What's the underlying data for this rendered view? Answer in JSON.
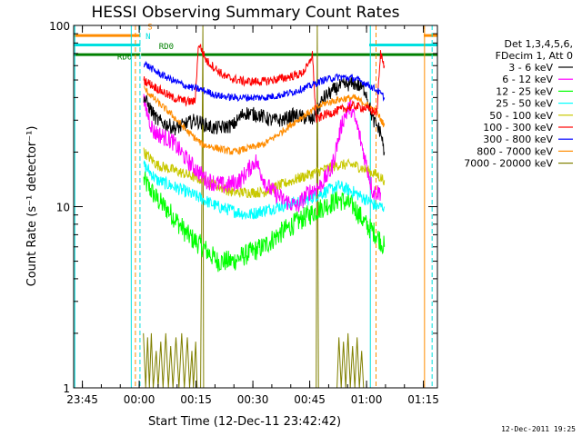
{
  "chart_data": {
    "type": "line",
    "title": "HESSI Observing Summary Count Rates",
    "xlabel": "Start Time (12-Dec-11 23:42:42)",
    "ylabel": "Count Rate (s⁻¹ detector⁻¹)",
    "ylog": true,
    "x_unit": "minutes since 23:42:42",
    "xlim": [
      0,
      96
    ],
    "ylim": [
      1,
      100
    ],
    "xticks": [
      {
        "label": "23:45",
        "x": 2.3
      },
      {
        "label": "00:00",
        "x": 17.3
      },
      {
        "label": "00:15",
        "x": 32.3
      },
      {
        "label": "00:30",
        "x": 47.3
      },
      {
        "label": "00:45",
        "x": 62.3
      },
      {
        "label": "01:00",
        "x": 77.3
      },
      {
        "label": "01:15",
        "x": 92.3
      }
    ],
    "yticks": [
      {
        "label": "100",
        "y": 100
      },
      {
        "label": "10",
        "y": 10
      },
      {
        "label": "1",
        "y": 1
      }
    ],
    "legend_header": [
      "Det 1,3,4,5,6,",
      "FDecim 1, Att 0"
    ],
    "legend_placement": "right",
    "footer_date": "12-Dec-2011 19:25",
    "flags": [
      {
        "label": "S",
        "color": "#ff8c00",
        "y": 88,
        "x": [
          0,
          17.6
        ],
        "x2": [
          92.4,
          96
        ]
      },
      {
        "label": "N",
        "color": "#00e0e0",
        "y": 78,
        "x": [
          0,
          17.6
        ],
        "x2": [
          78.0,
          96
        ]
      },
      {
        "label": "RD0",
        "color": "#008000",
        "y": 69,
        "x": [
          17.8,
          96
        ],
        "x2": []
      },
      {
        "label": "RD6",
        "color": "#008000",
        "y": 69,
        "x": [
          0,
          17.6
        ],
        "x2": []
      }
    ],
    "flag_labels": [
      {
        "text": "S",
        "color": "#ff8c00",
        "x": 19.5,
        "y": 95
      },
      {
        "text": "N",
        "color": "#00e0e0",
        "x": 19.0,
        "y": 84
      },
      {
        "text": "RD0",
        "color": "#008000",
        "x": 22.5,
        "y": 74
      },
      {
        "text": "RD6",
        "color": "#008000",
        "x": 11.5,
        "y": 65
      }
    ],
    "vlines": [
      {
        "x": 0.3,
        "color": "#00e0e0",
        "style": "solid"
      },
      {
        "x": 15.2,
        "color": "#00e0e0",
        "style": "solid"
      },
      {
        "x": 16.3,
        "color": "#ff8c00",
        "style": "dashed"
      },
      {
        "x": 17.5,
        "color": "#00e0e0",
        "style": "dashed"
      },
      {
        "x": 78.3,
        "color": "#00e0e0",
        "style": "solid"
      },
      {
        "x": 79.8,
        "color": "#ff8c00",
        "style": "dashed"
      },
      {
        "x": 92.6,
        "color": "#ff8c00",
        "style": "solid"
      },
      {
        "x": 94.6,
        "color": "#00e0e0",
        "style": "dashed"
      }
    ],
    "series": [
      {
        "name": "3 - 6 keV",
        "color": "#000000",
        "noise": 0.08,
        "points": [
          [
            18.5,
            40
          ],
          [
            22,
            30
          ],
          [
            27,
            27
          ],
          [
            32,
            30
          ],
          [
            37,
            27
          ],
          [
            42,
            28
          ],
          [
            45,
            33
          ],
          [
            49,
            32
          ],
          [
            52,
            30
          ],
          [
            55,
            30
          ],
          [
            58,
            32
          ],
          [
            61,
            31
          ],
          [
            63,
            30
          ],
          [
            66,
            40
          ],
          [
            70,
            46
          ],
          [
            74,
            48
          ],
          [
            77,
            44
          ],
          [
            79,
            30
          ],
          [
            81,
            26
          ],
          [
            82,
            20
          ]
        ]
      },
      {
        "name": "6 - 12 keV",
        "color": "#ff00ff",
        "noise": 0.1,
        "points": [
          [
            18.5,
            38
          ],
          [
            21,
            26
          ],
          [
            26,
            23
          ],
          [
            30,
            18
          ],
          [
            35,
            14
          ],
          [
            40,
            13
          ],
          [
            44,
            14
          ],
          [
            48,
            18
          ],
          [
            51,
            13
          ],
          [
            55,
            11
          ],
          [
            59,
            10
          ],
          [
            62,
            12
          ],
          [
            65,
            13
          ],
          [
            68,
            16
          ],
          [
            71,
            30
          ],
          [
            73,
            36
          ],
          [
            75,
            27
          ],
          [
            77,
            18
          ],
          [
            79,
            12
          ],
          [
            81,
            12
          ]
        ]
      },
      {
        "name": "12 - 25 keV",
        "color": "#00ff00",
        "noise": 0.12,
        "points": [
          [
            18.5,
            14
          ],
          [
            22,
            11
          ],
          [
            26,
            9
          ],
          [
            30,
            7
          ],
          [
            34,
            6
          ],
          [
            38,
            5
          ],
          [
            42,
            5
          ],
          [
            46,
            5.5
          ],
          [
            50,
            6
          ],
          [
            54,
            7
          ],
          [
            58,
            8
          ],
          [
            62,
            9
          ],
          [
            66,
            10
          ],
          [
            70,
            11
          ],
          [
            74,
            10
          ],
          [
            77,
            8
          ],
          [
            80,
            7
          ],
          [
            82,
            6
          ]
        ]
      },
      {
        "name": "25 - 50 keV",
        "color": "#00ffff",
        "noise": 0.07,
        "points": [
          [
            18.5,
            17
          ],
          [
            22,
            14
          ],
          [
            26,
            13
          ],
          [
            30,
            12
          ],
          [
            34,
            11
          ],
          [
            38,
            10
          ],
          [
            42,
            9.5
          ],
          [
            46,
            9
          ],
          [
            50,
            9.5
          ],
          [
            54,
            10
          ],
          [
            58,
            10.5
          ],
          [
            62,
            11
          ],
          [
            66,
            12
          ],
          [
            70,
            13
          ],
          [
            74,
            12
          ],
          [
            77,
            11
          ],
          [
            80,
            10
          ],
          [
            82,
            10
          ]
        ]
      },
      {
        "name": "50 - 100 keV",
        "color": "#c8c800",
        "noise": 0.06,
        "points": [
          [
            18.5,
            20
          ],
          [
            22,
            17
          ],
          [
            26,
            16
          ],
          [
            30,
            15
          ],
          [
            34,
            14
          ],
          [
            38,
            13
          ],
          [
            42,
            12
          ],
          [
            46,
            12
          ],
          [
            50,
            12
          ],
          [
            54,
            13
          ],
          [
            58,
            14
          ],
          [
            62,
            15
          ],
          [
            66,
            16
          ],
          [
            70,
            17
          ],
          [
            74,
            17
          ],
          [
            77,
            16
          ],
          [
            80,
            15
          ],
          [
            82,
            14
          ]
        ]
      },
      {
        "name": "100 - 300 keV",
        "color": "#ff0000",
        "noise": 0.05,
        "points": [
          [
            18.5,
            50
          ],
          [
            22,
            45
          ],
          [
            26,
            40
          ],
          [
            30,
            38
          ],
          [
            32,
            38
          ],
          [
            33,
            80
          ],
          [
            35,
            64
          ],
          [
            40,
            52
          ],
          [
            45,
            49
          ],
          [
            50,
            49
          ],
          [
            55,
            51
          ],
          [
            60,
            54
          ],
          [
            62,
            60
          ],
          [
            63,
            70
          ],
          [
            64,
            30
          ],
          [
            66,
            32
          ],
          [
            70,
            34
          ],
          [
            74,
            36
          ],
          [
            77,
            35
          ],
          [
            80,
            33
          ],
          [
            81,
            70
          ],
          [
            82,
            60
          ]
        ]
      },
      {
        "name": "300 - 800 keV",
        "color": "#0000ff",
        "noise": 0.04,
        "points": [
          [
            18.5,
            62
          ],
          [
            22,
            55
          ],
          [
            26,
            50
          ],
          [
            30,
            46
          ],
          [
            34,
            44
          ],
          [
            38,
            41
          ],
          [
            42,
            40
          ],
          [
            46,
            40
          ],
          [
            50,
            40
          ],
          [
            54,
            41
          ],
          [
            58,
            43
          ],
          [
            62,
            46
          ],
          [
            66,
            50
          ],
          [
            70,
            52
          ],
          [
            74,
            51
          ],
          [
            77,
            48
          ],
          [
            80,
            44
          ],
          [
            82,
            40
          ]
        ]
      },
      {
        "name": "800 - 7000 keV",
        "color": "#ff8c00",
        "noise": 0.04,
        "points": [
          [
            18.5,
            45
          ],
          [
            22,
            38
          ],
          [
            26,
            32
          ],
          [
            30,
            26
          ],
          [
            34,
            22
          ],
          [
            38,
            21
          ],
          [
            42,
            20
          ],
          [
            46,
            21
          ],
          [
            50,
            22
          ],
          [
            54,
            25
          ],
          [
            58,
            29
          ],
          [
            62,
            33
          ],
          [
            66,
            37
          ],
          [
            70,
            39
          ],
          [
            74,
            40
          ],
          [
            77,
            37
          ],
          [
            80,
            33
          ],
          [
            82,
            28
          ]
        ]
      },
      {
        "name": "7000 - 20000 keV",
        "color": "#808000",
        "noise": 0.0,
        "points": [
          [
            18.4,
            2.0
          ],
          [
            19.0,
            1.0
          ],
          [
            19.5,
            1.9
          ],
          [
            20.0,
            1.0
          ],
          [
            20.5,
            2.0
          ],
          [
            21.0,
            1.0
          ],
          [
            21.8,
            1.6
          ],
          [
            22.3,
            1.0
          ],
          [
            23.0,
            1.8
          ],
          [
            23.6,
            1.0
          ],
          [
            24.3,
            2.0
          ],
          [
            25.0,
            1.0
          ],
          [
            25.6,
            1.7
          ],
          [
            26.2,
            1.0
          ],
          [
            27.0,
            1.9
          ],
          [
            27.8,
            1.0
          ],
          [
            28.5,
            2.0
          ],
          [
            29.2,
            1.0
          ],
          [
            30.0,
            1.9
          ],
          [
            30.6,
            1.0
          ],
          [
            31.2,
            1.6
          ],
          [
            31.6,
            1.0
          ],
          [
            32.2,
            1.8
          ],
          [
            32.6,
            1.0
          ],
          [
            33.5,
            1.0
          ],
          [
            34.1,
            100
          ],
          [
            34.3,
            1.0
          ],
          [
            64.0,
            1.0
          ],
          [
            64.3,
            100
          ],
          [
            64.6,
            1.0
          ],
          [
            69.5,
            1.0
          ],
          [
            70.0,
            1.9
          ],
          [
            70.6,
            1.0
          ],
          [
            71.2,
            1.8
          ],
          [
            71.8,
            1.0
          ],
          [
            72.4,
            2.0
          ],
          [
            73.0,
            1.0
          ],
          [
            73.6,
            1.7
          ],
          [
            74.2,
            1.0
          ],
          [
            74.8,
            1.9
          ],
          [
            75.4,
            1.0
          ],
          [
            76.0,
            1.6
          ],
          [
            76.5,
            1.0
          ],
          [
            82.5,
            1.0
          ]
        ]
      }
    ]
  }
}
